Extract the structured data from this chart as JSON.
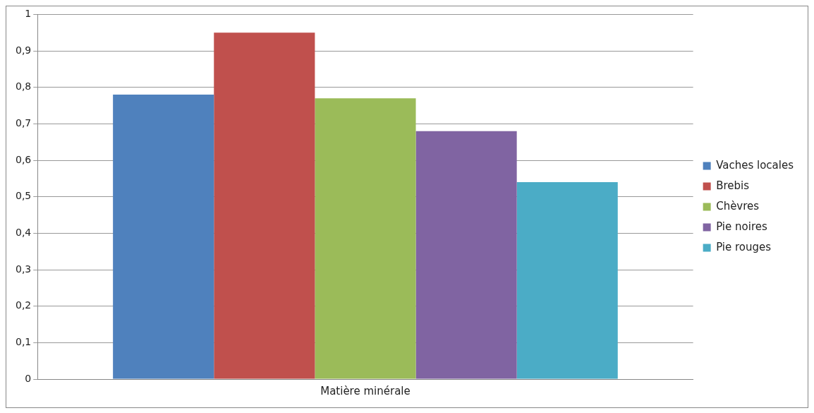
{
  "chart_data": {
    "type": "bar",
    "categories": [
      "Matière minérale"
    ],
    "series": [
      {
        "name": "Vaches locales",
        "color": "#4f81bd",
        "values": [
          0.78
        ]
      },
      {
        "name": "Brebis",
        "color": "#c0504d",
        "values": [
          0.95
        ]
      },
      {
        "name": "Chèvres",
        "color": "#9bbb59",
        "values": [
          0.77
        ]
      },
      {
        "name": "Pie noires",
        "color": "#8064a2",
        "values": [
          0.68
        ]
      },
      {
        "name": "Pie rouges",
        "color": "#4bacc6",
        "values": [
          0.54
        ]
      }
    ],
    "ylim": [
      0,
      1
    ],
    "yticks": [
      0,
      {
        "value": 0.1,
        "label": "0,1"
      },
      {
        "value": 0.2,
        "label": "0,2"
      },
      {
        "value": 0.3,
        "label": "0,3"
      },
      {
        "value": 0.4,
        "label": "0,4"
      },
      {
        "value": 0.5,
        "label": "0,5"
      },
      {
        "value": 0.6,
        "label": "0,6"
      },
      {
        "value": 0.7,
        "label": "0,7"
      },
      {
        "value": 0.8,
        "label": "0,8"
      },
      {
        "value": 0.9,
        "label": "0,9"
      },
      1
    ],
    "grid": "y",
    "legend": "right"
  }
}
